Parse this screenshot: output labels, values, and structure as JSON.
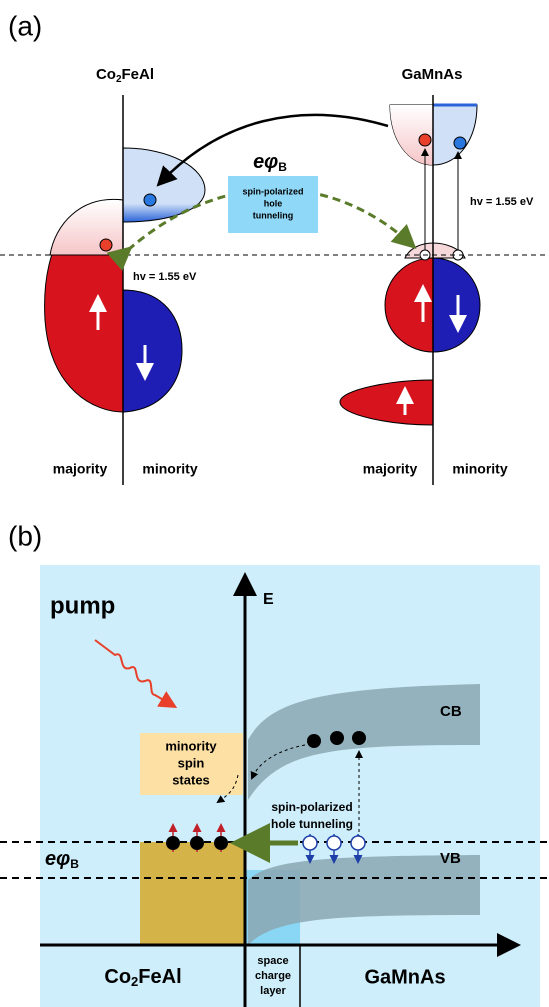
{
  "panel_a": {
    "label": "(a)",
    "left_material": {
      "main": "Co",
      "sub": "2",
      "rest": "FeAl"
    },
    "right_material": "GaMnAs",
    "barrier": {
      "main": "eφ",
      "sub": "B"
    },
    "tunneling_box": [
      "spin-polarized",
      "hole",
      "tunneling"
    ],
    "photon_left": "hv = 1.55 eV",
    "photon_right": "hv = 1.55 eV",
    "left_majority": "majority",
    "left_minority": "minority",
    "right_majority": "majority",
    "right_minority": "minority"
  },
  "panel_b": {
    "label": "(b)",
    "pump": "pump",
    "axis_label": "E",
    "cb": "CB",
    "vb": "VB",
    "minority_box": [
      "minority",
      "spin",
      "states"
    ],
    "tunneling": [
      "spin-polarized",
      "hole tunneling"
    ],
    "barrier": {
      "main": "eφ",
      "sub": "B"
    },
    "left_material": {
      "main": "Co",
      "sub": "2",
      "rest": "FeAl"
    },
    "space_charge": [
      "space",
      "charge",
      "layer"
    ],
    "right_material": "GaMnAs"
  }
}
